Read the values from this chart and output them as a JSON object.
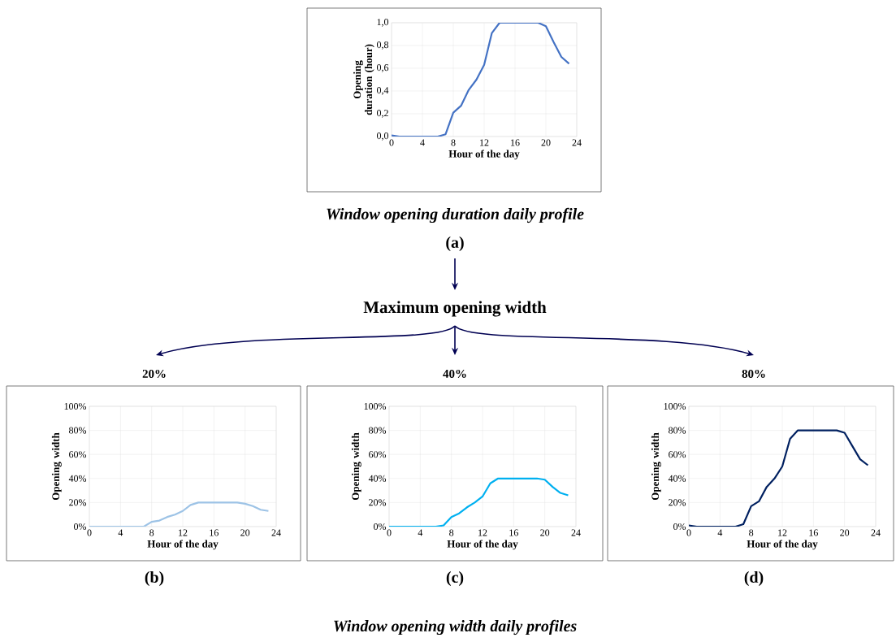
{
  "chart_data": [
    {
      "type": "line",
      "xlabel": "Hour of the day",
      "ylabel": "Opening duration (hour)",
      "x": [
        0,
        1,
        2,
        3,
        4,
        5,
        6,
        7,
        8,
        9,
        10,
        11,
        12,
        13,
        14,
        15,
        16,
        17,
        18,
        19,
        20,
        21,
        22,
        23
      ],
      "series": [
        {
          "color": "#4472c4",
          "values": [
            0.01,
            0,
            0,
            0,
            0,
            0,
            0,
            0.02,
            0.21,
            0.27,
            0.41,
            0.5,
            0.63,
            0.91,
            1.0,
            1.0,
            1.0,
            1.0,
            1.0,
            1.0,
            0.97,
            0.83,
            0.7,
            0.64
          ]
        }
      ],
      "xlim": [
        0,
        24
      ],
      "xticks": [
        0,
        4,
        8,
        12,
        16,
        20,
        24
      ],
      "ylim": [
        0,
        1
      ],
      "yticks": [
        {
          "value": 0,
          "label": "0,0"
        },
        {
          "value": 0.2,
          "label": "0,2"
        },
        {
          "value": 0.4,
          "label": "0,4"
        },
        {
          "value": 0.6,
          "label": "0,6"
        },
        {
          "value": 0.8,
          "label": "0,8"
        },
        {
          "value": 1,
          "label": "1,0"
        }
      ],
      "grid": true,
      "marker": "none",
      "line_style": "solid",
      "annotations": [
        "Window opening duration daily profile",
        "(a)",
        "Maximum opening width"
      ]
    },
    {
      "type": "line",
      "title": "20%",
      "xlabel": "Hour of the day",
      "ylabel": "Opening width",
      "x": [
        0,
        1,
        2,
        3,
        4,
        5,
        6,
        7,
        8,
        9,
        10,
        11,
        12,
        13,
        14,
        15,
        16,
        17,
        18,
        19,
        20,
        21,
        22,
        23
      ],
      "series": [
        {
          "color": "#9dc3e6",
          "values": [
            0,
            0,
            0,
            0,
            0,
            0,
            0,
            0,
            4,
            5,
            8,
            10,
            13,
            18,
            20,
            20,
            20,
            20,
            20,
            20,
            19,
            17,
            14,
            13
          ]
        }
      ],
      "xlim": [
        0,
        24
      ],
      "xticks": [
        0,
        4,
        8,
        12,
        16,
        20,
        24
      ],
      "ylim": [
        0,
        100
      ],
      "yticks": [
        {
          "value": 0,
          "label": "0%"
        },
        {
          "value": 20,
          "label": "20%"
        },
        {
          "value": 40,
          "label": "40%"
        },
        {
          "value": 60,
          "label": "60%"
        },
        {
          "value": 80,
          "label": "80%"
        },
        {
          "value": 100,
          "label": "100%"
        }
      ],
      "grid": true,
      "marker": "none",
      "line_style": "solid",
      "annotations": [
        "(b)"
      ]
    },
    {
      "type": "line",
      "title": "40%",
      "xlabel": "Hour of the day",
      "ylabel": "Opening width",
      "x": [
        0,
        1,
        2,
        3,
        4,
        5,
        6,
        7,
        8,
        9,
        10,
        11,
        12,
        13,
        14,
        15,
        16,
        17,
        18,
        19,
        20,
        21,
        22,
        23
      ],
      "series": [
        {
          "color": "#00b0f0",
          "values": [
            0,
            0,
            0,
            0,
            0,
            0,
            0,
            1,
            8,
            11,
            16,
            20,
            25,
            36,
            40,
            40,
            40,
            40,
            40,
            40,
            39,
            33,
            28,
            26
          ]
        }
      ],
      "xlim": [
        0,
        24
      ],
      "xticks": [
        0,
        4,
        8,
        12,
        16,
        20,
        24
      ],
      "ylim": [
        0,
        100
      ],
      "yticks": [
        {
          "value": 0,
          "label": "0%"
        },
        {
          "value": 20,
          "label": "20%"
        },
        {
          "value": 40,
          "label": "40%"
        },
        {
          "value": 60,
          "label": "60%"
        },
        {
          "value": 80,
          "label": "80%"
        },
        {
          "value": 100,
          "label": "100%"
        }
      ],
      "grid": true,
      "marker": "none",
      "line_style": "solid",
      "annotations": [
        "(c)",
        "Window opening width daily profiles"
      ]
    },
    {
      "type": "line",
      "title": "80%",
      "xlabel": "Hour of the day",
      "ylabel": "Opening width",
      "x": [
        0,
        1,
        2,
        3,
        4,
        5,
        6,
        7,
        8,
        9,
        10,
        11,
        12,
        13,
        14,
        15,
        16,
        17,
        18,
        19,
        20,
        21,
        22,
        23
      ],
      "series": [
        {
          "color": "#002060",
          "values": [
            1,
            0,
            0,
            0,
            0,
            0,
            0,
            2,
            17,
            21,
            33,
            40,
            50,
            73,
            80,
            80,
            80,
            80,
            80,
            80,
            78,
            67,
            56,
            51
          ]
        }
      ],
      "xlim": [
        0,
        24
      ],
      "xticks": [
        0,
        4,
        8,
        12,
        16,
        20,
        24
      ],
      "ylim": [
        0,
        100
      ],
      "yticks": [
        {
          "value": 0,
          "label": "0%"
        },
        {
          "value": 20,
          "label": "20%"
        },
        {
          "value": 40,
          "label": "40%"
        },
        {
          "value": 60,
          "label": "60%"
        },
        {
          "value": 80,
          "label": "80%"
        },
        {
          "value": 100,
          "label": "100%"
        }
      ],
      "grid": true,
      "marker": "none",
      "line_style": "solid",
      "annotations": [
        "(d)"
      ]
    }
  ]
}
